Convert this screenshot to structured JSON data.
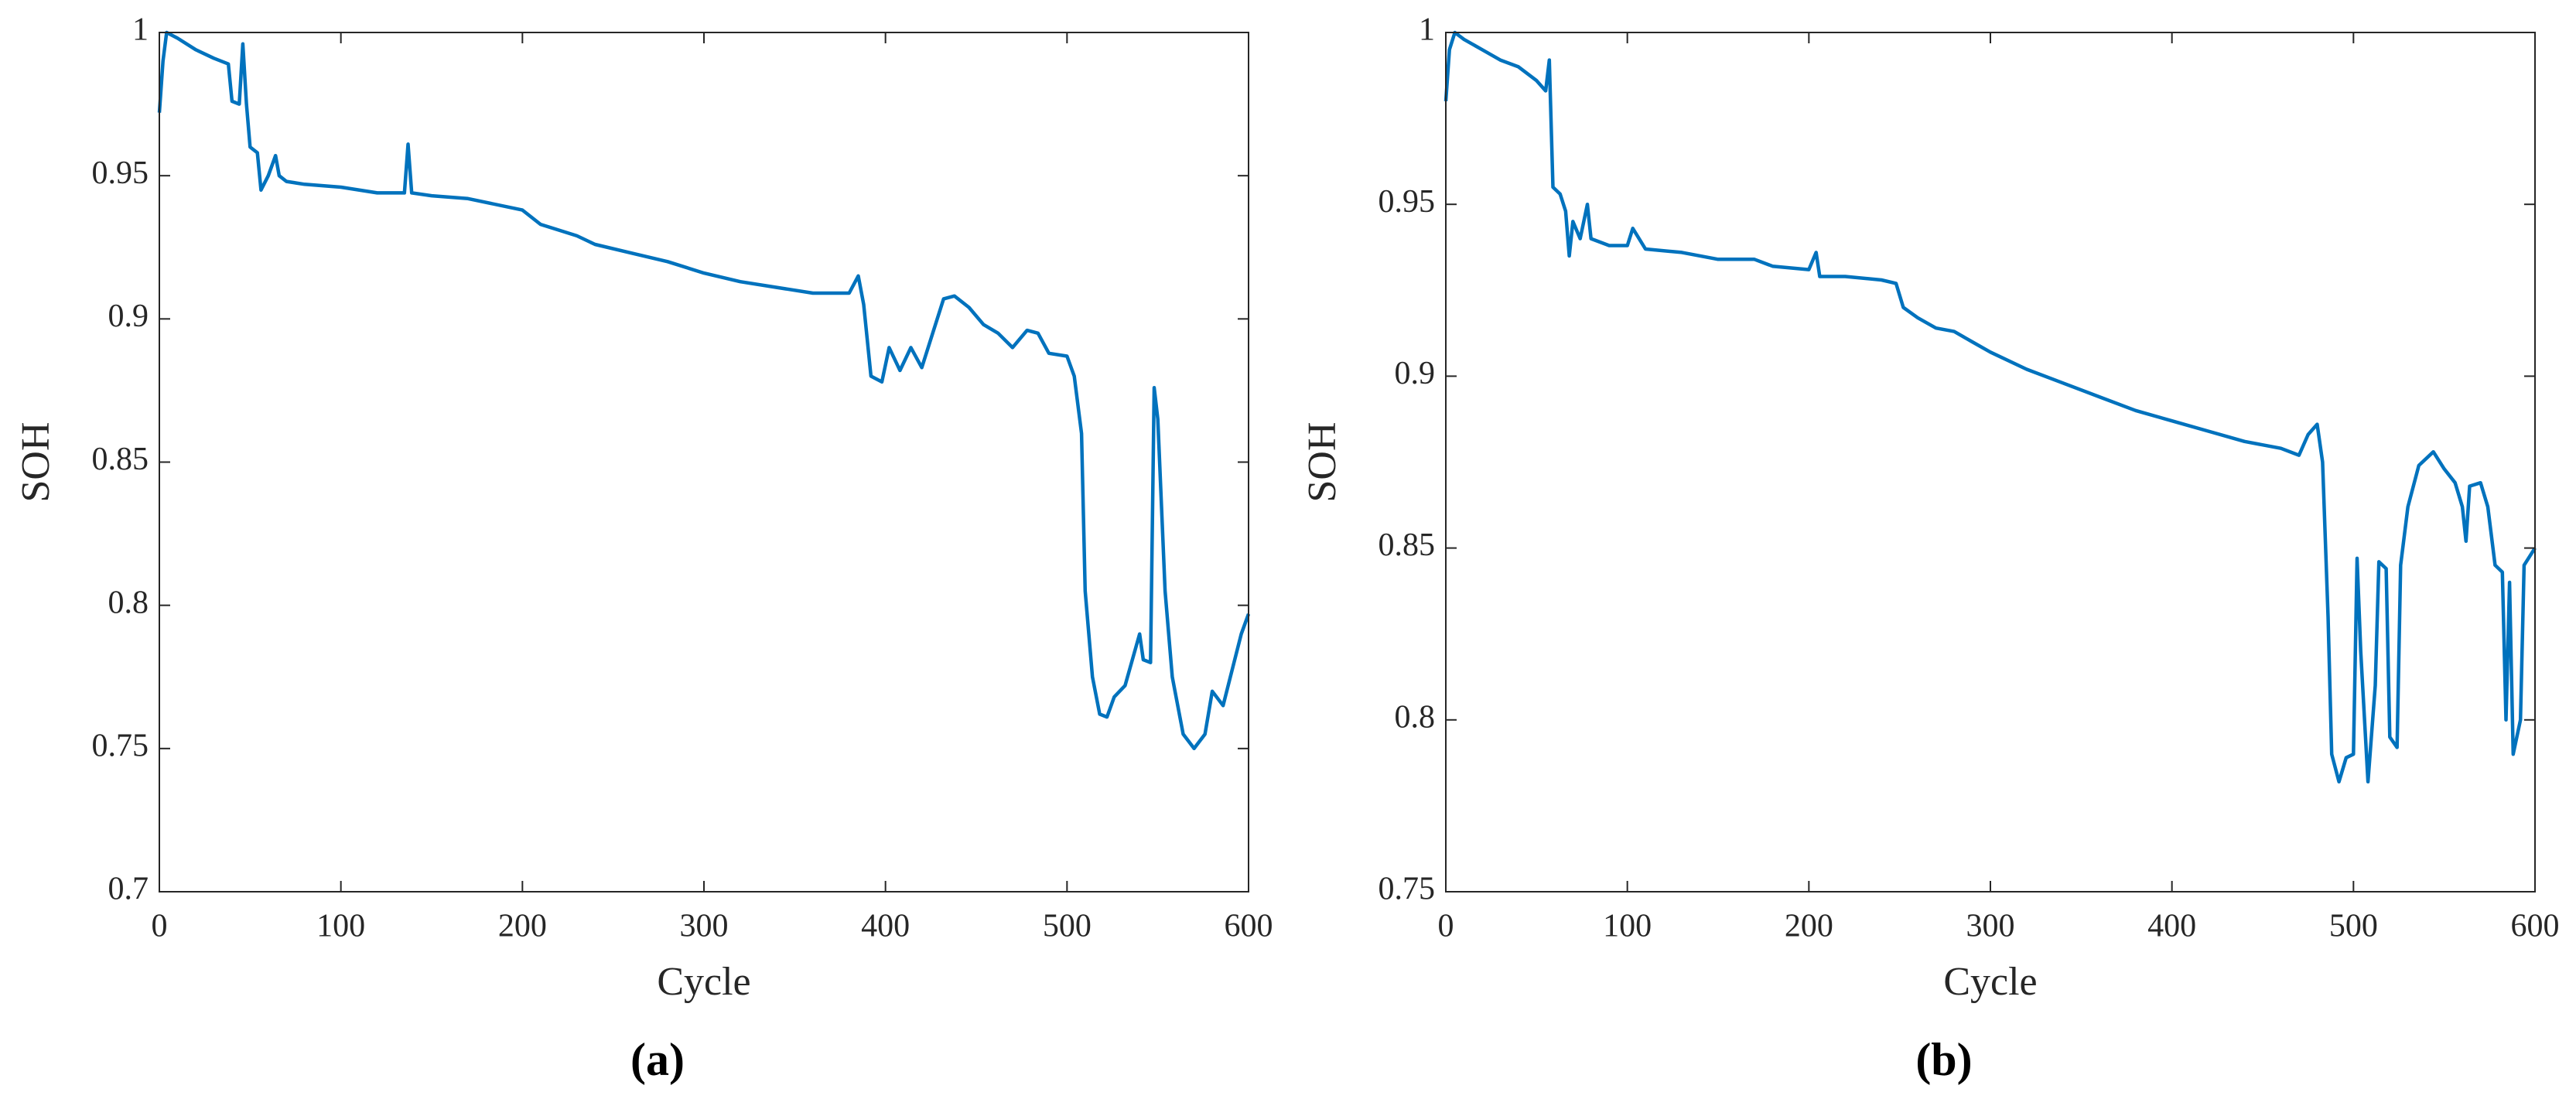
{
  "chart_data": [
    {
      "type": "line",
      "caption": "(a)",
      "xlabel": "Cycle",
      "ylabel": "SOH",
      "color": "#0072bd",
      "xlim": [
        0,
        600
      ],
      "xticks": [
        0,
        100,
        200,
        300,
        400,
        500,
        600
      ],
      "ylim": [
        0.7,
        1
      ],
      "yticks": [
        0.7,
        0.75,
        0.8,
        0.85,
        0.9,
        0.95,
        1
      ],
      "x": [
        0,
        2,
        4,
        10,
        20,
        30,
        38,
        40,
        44,
        46,
        48,
        50,
        54,
        56,
        60,
        64,
        66,
        70,
        80,
        100,
        120,
        135,
        137,
        139,
        150,
        170,
        200,
        210,
        220,
        230,
        240,
        260,
        280,
        300,
        320,
        340,
        360,
        380,
        385,
        388,
        392,
        398,
        402,
        408,
        414,
        420,
        426,
        432,
        438,
        446,
        454,
        462,
        470,
        478,
        484,
        490,
        500,
        504,
        508,
        510,
        514,
        518,
        522,
        526,
        532,
        540,
        542,
        546,
        548,
        550,
        554,
        558,
        564,
        570,
        576,
        580,
        586,
        590,
        596,
        600
      ],
      "values": [
        0.972,
        0.99,
        1.0,
        0.998,
        0.994,
        0.991,
        0.989,
        0.976,
        0.975,
        0.996,
        0.975,
        0.96,
        0.958,
        0.945,
        0.95,
        0.957,
        0.95,
        0.948,
        0.947,
        0.946,
        0.944,
        0.944,
        0.961,
        0.944,
        0.943,
        0.942,
        0.938,
        0.933,
        0.931,
        0.929,
        0.926,
        0.923,
        0.92,
        0.916,
        0.913,
        0.911,
        0.909,
        0.909,
        0.915,
        0.905,
        0.88,
        0.878,
        0.89,
        0.882,
        0.89,
        0.883,
        0.895,
        0.907,
        0.908,
        0.904,
        0.898,
        0.895,
        0.89,
        0.896,
        0.895,
        0.888,
        0.887,
        0.88,
        0.86,
        0.805,
        0.775,
        0.762,
        0.761,
        0.768,
        0.772,
        0.79,
        0.781,
        0.78,
        0.876,
        0.865,
        0.805,
        0.775,
        0.755,
        0.75,
        0.755,
        0.77,
        0.765,
        0.775,
        0.79,
        0.797
      ]
    },
    {
      "type": "line",
      "caption": "(b)",
      "xlabel": "Cycle",
      "ylabel": "SOH",
      "color": "#0072bd",
      "xlim": [
        0,
        600
      ],
      "xticks": [
        0,
        100,
        200,
        300,
        400,
        500,
        600
      ],
      "ylim": [
        0.75,
        1
      ],
      "yticks": [
        0.75,
        0.8,
        0.85,
        0.9,
        0.95,
        1
      ],
      "x": [
        0,
        2,
        5,
        10,
        20,
        30,
        40,
        50,
        55,
        57,
        59,
        63,
        66,
        68,
        70,
        74,
        78,
        80,
        90,
        100,
        103,
        110,
        130,
        150,
        170,
        180,
        200,
        204,
        206,
        220,
        240,
        248,
        252,
        260,
        270,
        280,
        290,
        300,
        320,
        340,
        360,
        380,
        400,
        420,
        440,
        460,
        470,
        475,
        480,
        483,
        486,
        488,
        492,
        496,
        500,
        502,
        504,
        508,
        512,
        514,
        518,
        520,
        524,
        526,
        530,
        536,
        544,
        550,
        556,
        560,
        562,
        564,
        570,
        574,
        578,
        582,
        584,
        586,
        588,
        592,
        594,
        600
      ],
      "values": [
        0.98,
        0.995,
        1.0,
        0.998,
        0.995,
        0.992,
        0.99,
        0.986,
        0.983,
        0.992,
        0.955,
        0.953,
        0.948,
        0.935,
        0.945,
        0.94,
        0.95,
        0.94,
        0.938,
        0.938,
        0.943,
        0.937,
        0.936,
        0.934,
        0.934,
        0.932,
        0.931,
        0.936,
        0.929,
        0.929,
        0.928,
        0.927,
        0.92,
        0.917,
        0.914,
        0.913,
        0.91,
        0.907,
        0.902,
        0.898,
        0.894,
        0.89,
        0.887,
        0.884,
        0.881,
        0.879,
        0.877,
        0.883,
        0.886,
        0.875,
        0.83,
        0.79,
        0.782,
        0.789,
        0.79,
        0.847,
        0.82,
        0.782,
        0.81,
        0.846,
        0.844,
        0.795,
        0.792,
        0.845,
        0.862,
        0.874,
        0.878,
        0.873,
        0.869,
        0.862,
        0.852,
        0.868,
        0.869,
        0.862,
        0.845,
        0.843,
        0.8,
        0.84,
        0.79,
        0.8,
        0.845,
        0.85
      ]
    }
  ]
}
